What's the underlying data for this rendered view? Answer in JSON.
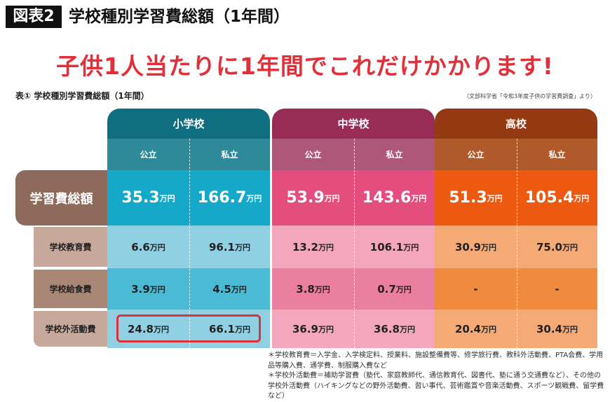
{
  "header": {
    "badge": "図表2",
    "title": "学校種別学習費総額（1年間）"
  },
  "headline": "子供1人当たりに1年間でこれだけかかります!",
  "table_caption": "表① 学校種別学習費総額（1年間）",
  "source": "（文部科学省「令和3年度子供の学習費調査」より）",
  "unit": "万円",
  "groups": [
    {
      "name": "小学校",
      "colors": {
        "head": "#0f6e7f",
        "sub": "#2e8998",
        "total": "#15a8c8",
        "light": "#8fd1e2",
        "mid": "#4bbad4"
      }
    },
    {
      "name": "中学校",
      "colors": {
        "head": "#982c55",
        "sub": "#ad5879",
        "total": "#e44e7e",
        "light": "#f4a6bd",
        "mid": "#eb7fa1"
      }
    },
    {
      "name": "高校",
      "colors": {
        "head": "#943912",
        "sub": "#b0592b",
        "total": "#ec5a12",
        "light": "#f5aa75",
        "mid": "#f08a3d"
      }
    }
  ],
  "subheaders": [
    "公立",
    "私立",
    "公立",
    "私立",
    "公立",
    "私立"
  ],
  "rows": [
    {
      "label": "学習費総額",
      "values": [
        "35.3",
        "166.7",
        "53.9",
        "143.6",
        "51.3",
        "105.4"
      ]
    },
    {
      "label": "学校教育費",
      "values": [
        "6.6",
        "96.1",
        "13.2",
        "106.1",
        "30.9",
        "75.0"
      ]
    },
    {
      "label": "学校給食費",
      "values": [
        "3.9",
        "4.5",
        "3.8",
        "0.7",
        "-",
        "-"
      ]
    },
    {
      "label": "学校外活動費",
      "values": [
        "24.8",
        "66.1",
        "36.9",
        "36.8",
        "20.4",
        "30.4"
      ]
    }
  ],
  "notes": [
    "＊学校教育費＝入学金、入学検定料、授業料、施設整備費等、修学旅行費、教科外活動費、PTA会費、学用品等購入費、通学費、制服購入費など",
    "＊学校外活動費＝補助学習費（塾代、家庭教師代、通信教育代、図書代、塾に通う交通費など）、その他の学校外活動費（ハイキングなどの野外活動費、習い事代、芸術鑑賞や音楽活動費、スポーツ観戦費、留学費など）"
  ]
}
